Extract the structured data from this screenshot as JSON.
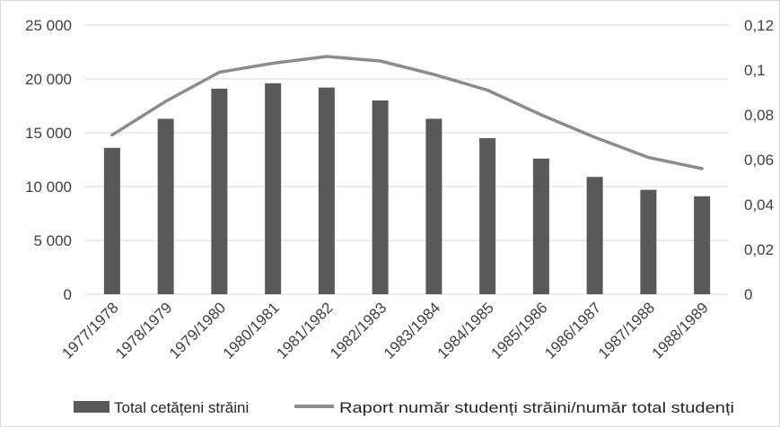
{
  "chart_data": {
    "type": "bar",
    "categories": [
      "1977/1978",
      "1978/1979",
      "1979/1980",
      "1980/1981",
      "1981/1982",
      "1982/1983",
      "1983/1984",
      "1984/1985",
      "1985/1986",
      "1986/1987",
      "1987/1988",
      "1988/1989"
    ],
    "series": [
      {
        "name": "Total cetățeni străini",
        "type": "bar",
        "axis": "left",
        "values": [
          13600,
          16300,
          19100,
          19600,
          19200,
          18000,
          16300,
          14500,
          12600,
          10900,
          9700,
          9100
        ]
      },
      {
        "name": "Raport număr studenți străini/număr total studenți",
        "type": "line",
        "axis": "right",
        "values": [
          0.071,
          0.086,
          0.099,
          0.103,
          0.106,
          0.104,
          0.098,
          0.091,
          0.08,
          0.07,
          0.061,
          0.056
        ]
      }
    ],
    "ylim": [
      0,
      25000
    ],
    "y2lim": [
      0,
      0.12
    ],
    "yticks": [
      "0",
      "5 000",
      "10 000",
      "15 000",
      "20 000",
      "25 000"
    ],
    "y2ticks": [
      "0",
      "0,02",
      "0,04",
      "0,06",
      "0,08",
      "0,1",
      "0,12"
    ],
    "grid": true,
    "legend_position": "bottom",
    "colors": {
      "bar": "#595959",
      "line": "#8c8c8c",
      "grid": "#d9d9d9",
      "text": "#404040"
    }
  }
}
